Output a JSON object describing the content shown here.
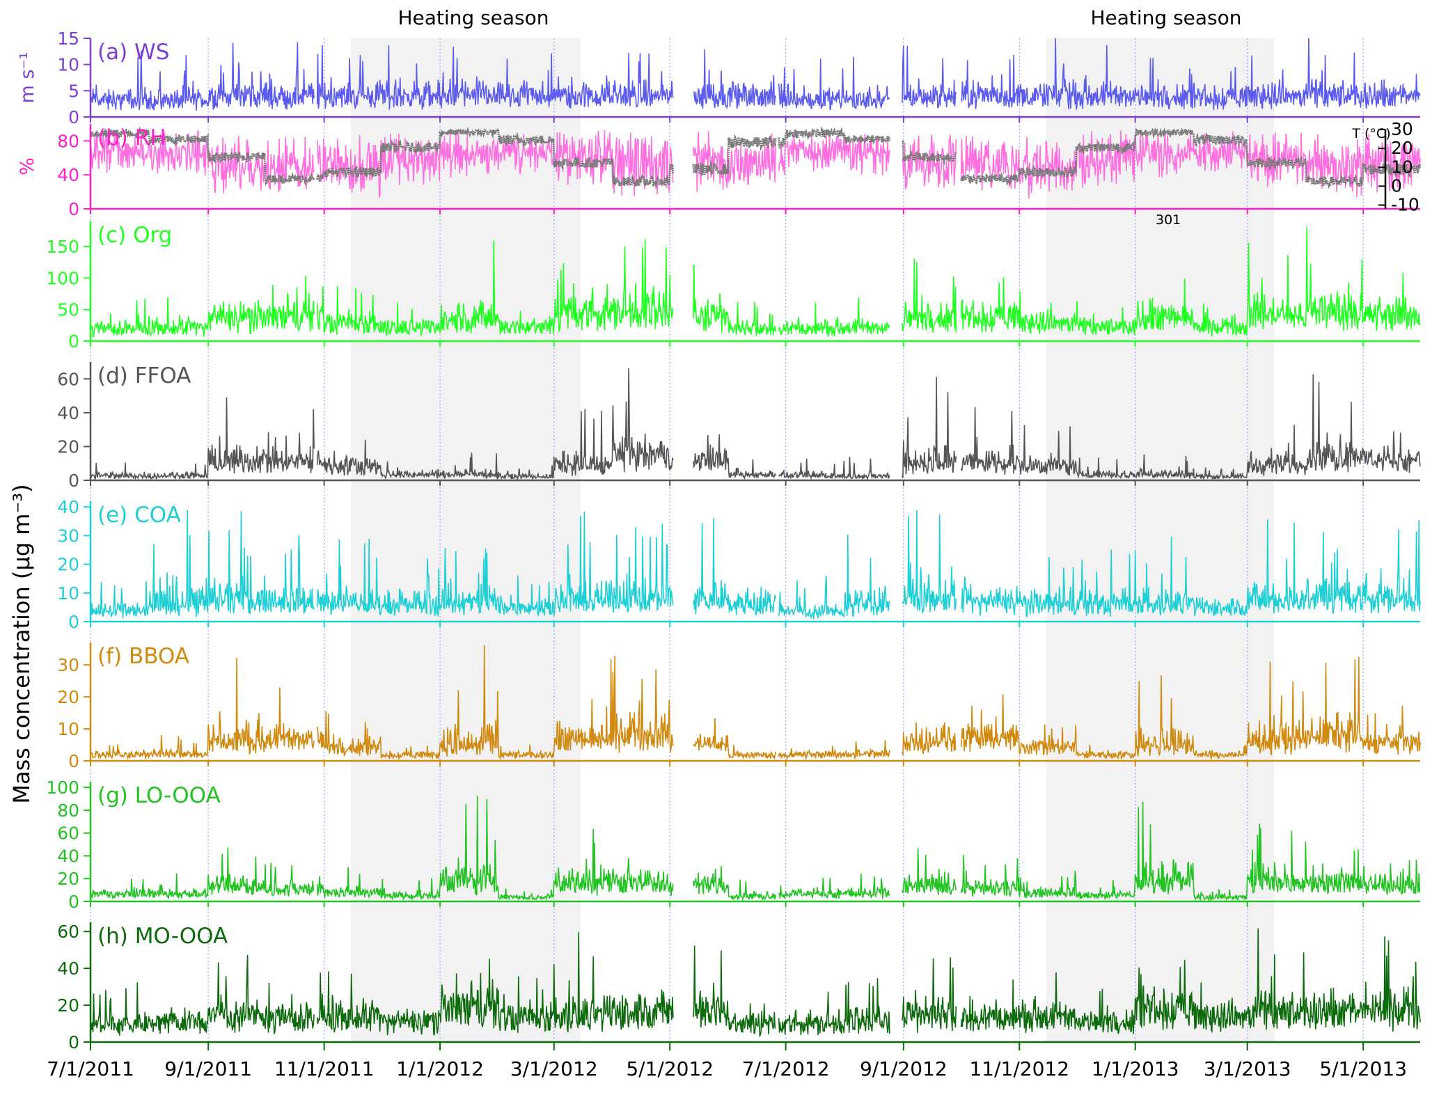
{
  "chart_data": {
    "type": "line",
    "x_start": "2011-07-01",
    "x_end": "2013-05-31",
    "x_ticks": [
      "7/1/2011",
      "9/1/2011",
      "11/1/2011",
      "1/1/2012",
      "3/1/2012",
      "5/1/2012",
      "7/1/2012",
      "9/1/2012",
      "11/1/2012",
      "1/1/2013",
      "3/1/2013",
      "5/1/2013"
    ],
    "x_tick_dates": [
      "2011-07-01",
      "2011-09-01",
      "2011-11-01",
      "2012-01-01",
      "2012-03-01",
      "2012-05-01",
      "2012-07-01",
      "2012-09-01",
      "2012-11-01",
      "2013-01-01",
      "2013-03-01",
      "2013-05-01"
    ],
    "heating_seasons": [
      {
        "label": "Heating season",
        "start": "2011-11-15",
        "end": "2012-03-15"
      },
      {
        "label": "Heating season",
        "start": "2012-11-15",
        "end": "2013-03-15"
      }
    ],
    "data_gaps": [
      [
        "2011-10-27",
        "2011-10-28"
      ],
      [
        "2012-05-03",
        "2012-05-13"
      ],
      [
        "2012-06-26",
        "2012-06-27"
      ],
      [
        "2012-08-25",
        "2012-08-31"
      ],
      [
        "2012-09-29",
        "2012-10-01"
      ]
    ],
    "ylabel": "Mass concentration (μg m⁻³)",
    "panels": [
      {
        "label": "(a) WS",
        "series": "WS",
        "units": "m s⁻¹",
        "color": "#5b5bf0",
        "axis_color": "#7b3fd6",
        "ylim": [
          0,
          15
        ],
        "yticks": [
          0,
          5,
          10,
          15
        ],
        "profile": {
          "base": [
            3,
            3,
            4,
            4,
            4,
            4,
            4,
            4,
            4,
            4,
            4,
            4
          ],
          "peak": [
            14,
            14,
            15,
            15,
            15,
            15,
            14,
            13,
            15,
            15,
            15,
            14
          ]
        }
      },
      {
        "label": "(b) RH",
        "series": "RH",
        "units": "%",
        "color": "#ff6fe0",
        "axis_color": "#ff1fc8",
        "ylim": [
          0,
          100
        ],
        "yticks": [
          0,
          40,
          80
        ],
        "profile": {
          "base": [
            70,
            65,
            45,
            45,
            40,
            50,
            65,
            70,
            55,
            40,
            45,
            50
          ],
          "peak": [
            95,
            95,
            90,
            90,
            90,
            95,
            95,
            95,
            95,
            95,
            95,
            95
          ]
        }
      },
      {
        "label": "T (°C)",
        "series": "T",
        "units": "°C",
        "color": "#7a7a7a",
        "ylim": [
          -12,
          33
        ],
        "yticks": [
          -10,
          0,
          10,
          20,
          30
        ],
        "profile": {
          "base": [
            26,
            23,
            13,
            2,
            5,
            18,
            27,
            22,
            10,
            0,
            6,
            20
          ],
          "peak": [
            30,
            27,
            18,
            6,
            10,
            23,
            30,
            27,
            15,
            5,
            12,
            26
          ]
        }
      },
      {
        "label": "(c) Org",
        "series": "Org",
        "color": "#22ff22",
        "ylim": [
          0,
          190
        ],
        "yticks": [
          0,
          50,
          100,
          150
        ],
        "annotation": "301",
        "profile": {
          "base": [
            20,
            22,
            35,
            40,
            30,
            25,
            30,
            25,
            40,
            45,
            40,
            20
          ],
          "peak": [
            70,
            75,
            160,
            140,
            100,
            60,
            180,
            60,
            190,
            190,
            140,
            70
          ]
        }
      },
      {
        "label": "(d) FFOA",
        "series": "FFOA",
        "color": "#555555",
        "ylim": [
          0,
          70
        ],
        "yticks": [
          0,
          20,
          40,
          60
        ],
        "profile": {
          "base": [
            2,
            2,
            8,
            10,
            8,
            3,
            3,
            2,
            8,
            14,
            12,
            3
          ],
          "peak": [
            15,
            15,
            62,
            48,
            35,
            15,
            18,
            10,
            45,
            66,
            42,
            15
          ]
        }
      },
      {
        "label": "(e) COA",
        "series": "COA",
        "color": "#1fcfd6",
        "ylim": [
          0,
          42
        ],
        "yticks": [
          0,
          10,
          20,
          30,
          40
        ],
        "profile": {
          "base": [
            3,
            4,
            7,
            6,
            5,
            5,
            6,
            5,
            6,
            7,
            7,
            4
          ],
          "peak": [
            17,
            40,
            40,
            35,
            33,
            30,
            30,
            20,
            40,
            40,
            40,
            40
          ]
        }
      },
      {
        "label": "(f) BBOA",
        "series": "BBOA",
        "color": "#d18a10",
        "ylim": [
          0,
          37
        ],
        "yticks": [
          0,
          10,
          20,
          30
        ],
        "profile": {
          "base": [
            2,
            2,
            5,
            7,
            4,
            2,
            3,
            2,
            5,
            8,
            6,
            2
          ],
          "peak": [
            6,
            9,
            35,
            25,
            19,
            6,
            36,
            6,
            35,
            35,
            17,
            5
          ]
        }
      },
      {
        "label": "(g) LO-OOA",
        "series": "LO-OOA",
        "color": "#22c322",
        "ylim": [
          0,
          105
        ],
        "yticks": [
          0,
          20,
          40,
          60,
          80,
          100
        ],
        "profile": {
          "base": [
            6,
            6,
            12,
            12,
            8,
            5,
            15,
            4,
            15,
            20,
            15,
            5
          ],
          "peak": [
            30,
            30,
            57,
            40,
            30,
            22,
            100,
            12,
            80,
            45,
            47,
            20
          ]
        }
      },
      {
        "label": "(h) MO-OOA",
        "series": "MO-OOA",
        "color": "#0d6a0d",
        "ylim": [
          0,
          65
        ],
        "yticks": [
          0,
          20,
          40,
          60
        ],
        "profile": {
          "base": [
            10,
            12,
            15,
            14,
            15,
            12,
            20,
            15,
            15,
            18,
            18,
            10
          ],
          "peak": [
            35,
            40,
            52,
            40,
            40,
            35,
            60,
            40,
            60,
            55,
            60,
            30
          ]
        }
      }
    ]
  }
}
